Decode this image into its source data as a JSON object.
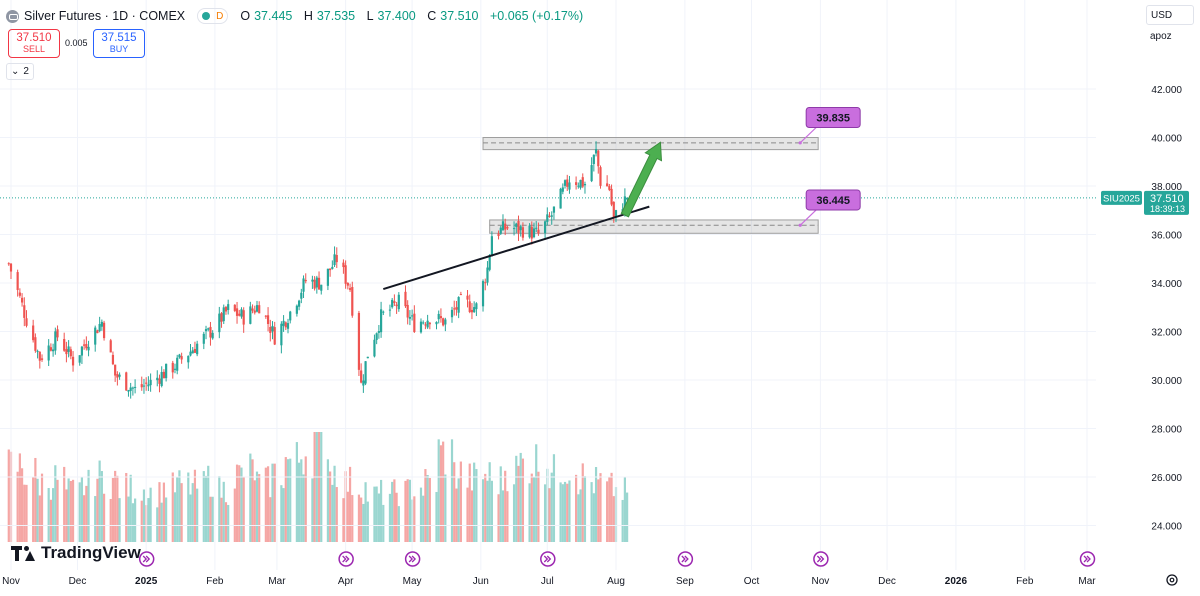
{
  "header": {
    "title": "Silver Futures · 1D · COMEX",
    "status_label": "D",
    "o_label": "O",
    "o_value": "37.445",
    "h_label": "H",
    "h_value": "37.535",
    "l_label": "L",
    "l_value": "37.400",
    "c_label": "C",
    "c_value": "37.510",
    "change": "+0.065 (+0.17%)"
  },
  "trade": {
    "sell_price": "37.510",
    "sell_label": "SELL",
    "spread": "0.005",
    "buy_price": "37.515",
    "buy_label": "BUY"
  },
  "indicators": {
    "count": "2"
  },
  "scale": {
    "currency": "USD",
    "mode": "apoz"
  },
  "logo": {
    "text": "TradingView"
  },
  "colors": {
    "up": "#26a69a",
    "down": "#ef5350",
    "vol_up": "#9ad6d0",
    "vol_down": "#f5a6a4",
    "annotation": "#c96ede",
    "arrow": "#4caf50"
  },
  "chart_data": {
    "type": "candlestick",
    "symbol": "SIU2025",
    "last_price": "37.510",
    "countdown": "18:39:13",
    "y_ticks": [
      "42.000",
      "40.000",
      "38.000",
      "36.000",
      "34.000",
      "32.000",
      "30.000",
      "28.000",
      "26.000",
      "24.000"
    ],
    "ylim": [
      22.8,
      43.8
    ],
    "x_ticks": [
      "Nov",
      "Dec",
      "2025",
      "Feb",
      "Mar",
      "Apr",
      "May",
      "Jun",
      "Jul",
      "Aug",
      "Sep",
      "Oct",
      "Nov",
      "Dec",
      "2026",
      "Feb",
      "Mar"
    ],
    "x_tick_dates": [
      "2024-11-01",
      "2024-12-01",
      "2025-01-01",
      "2025-02-01",
      "2025-03-01",
      "2025-04-01",
      "2025-05-01",
      "2025-06-01",
      "2025-07-01",
      "2025-08-01",
      "2025-09-01",
      "2025-10-01",
      "2025-11-01",
      "2025-12-01",
      "2026-01-01",
      "2026-02-01",
      "2026-03-01"
    ],
    "bold_ticks": [
      "2025",
      "2026"
    ],
    "price_path": [
      [
        "2024-10-31",
        34.8
      ],
      [
        "2024-11-08",
        32.5
      ],
      [
        "2024-11-14",
        30.9
      ],
      [
        "2024-11-22",
        31.8
      ],
      [
        "2024-11-29",
        30.8
      ],
      [
        "2024-12-06",
        31.7
      ],
      [
        "2024-12-12",
        32.4
      ],
      [
        "2024-12-18",
        30.2
      ],
      [
        "2024-12-27",
        29.6
      ],
      [
        "2025-01-03",
        29.9
      ],
      [
        "2025-01-14",
        30.6
      ],
      [
        "2025-01-21",
        31.2
      ],
      [
        "2025-01-31",
        32.1
      ],
      [
        "2025-02-07",
        32.9
      ],
      [
        "2025-02-14",
        32.6
      ],
      [
        "2025-02-21",
        33.1
      ],
      [
        "2025-02-28",
        31.8
      ],
      [
        "2025-03-07",
        32.8
      ],
      [
        "2025-03-14",
        34.1
      ],
      [
        "2025-03-21",
        34.0
      ],
      [
        "2025-03-28",
        35.0
      ],
      [
        "2025-04-03",
        33.8
      ],
      [
        "2025-04-08",
        29.8
      ],
      [
        "2025-04-11",
        31.1
      ],
      [
        "2025-04-17",
        32.6
      ],
      [
        "2025-04-25",
        33.2
      ],
      [
        "2025-05-02",
        32.3
      ],
      [
        "2025-05-09",
        32.6
      ],
      [
        "2025-05-16",
        32.4
      ],
      [
        "2025-05-23",
        33.2
      ],
      [
        "2025-05-30",
        33.0
      ],
      [
        "2025-06-04",
        34.6
      ],
      [
        "2025-06-06",
        36.0
      ],
      [
        "2025-06-13",
        36.3
      ],
      [
        "2025-06-20",
        36.2
      ],
      [
        "2025-06-27",
        36.0
      ],
      [
        "2025-07-03",
        36.8
      ],
      [
        "2025-07-11",
        38.3
      ],
      [
        "2025-07-15",
        38.2
      ],
      [
        "2025-07-18",
        38.1
      ],
      [
        "2025-07-23",
        39.4
      ],
      [
        "2025-07-25",
        38.2
      ],
      [
        "2025-07-29",
        37.9
      ],
      [
        "2025-07-31",
        36.6
      ],
      [
        "2025-08-04",
        37.3
      ],
      [
        "2025-08-06",
        37.51
      ]
    ],
    "volume_level": [
      0.42,
      0.38,
      0.33,
      0.35,
      0.28,
      0.31,
      0.36,
      0.34,
      0.3,
      0.29,
      0.27,
      0.3,
      0.32,
      0.31,
      0.35,
      0.29,
      0.37,
      0.4,
      0.33,
      0.38,
      0.45,
      0.5,
      0.62,
      0.4,
      0.33,
      0.3,
      0.26,
      0.27,
      0.28,
      0.3,
      0.33,
      0.49,
      0.38,
      0.35,
      0.37,
      0.34,
      0.4,
      0.44,
      0.45,
      0.38,
      0.42,
      0.36,
      0.33,
      0.3,
      0.28
    ],
    "zones": [
      {
        "from": "2025-06-02",
        "to": "2025-10-31",
        "low": 39.5,
        "high": 40.0,
        "dash_price": 39.78,
        "label": "39.835"
      },
      {
        "from": "2025-06-05",
        "to": "2025-10-31",
        "low": 36.05,
        "high": 36.6,
        "dash_price": 36.38,
        "label": "36.445"
      }
    ],
    "trendline": [
      [
        "2025-04-18",
        33.75
      ],
      [
        "2025-08-16",
        37.15
      ]
    ],
    "projection_arrow": [
      [
        "2025-08-05",
        36.8
      ],
      [
        "2025-08-21",
        39.8
      ]
    ],
    "event_markers": [
      "2025-01-01",
      "2025-04-01",
      "2025-05-01",
      "2025-07-01",
      "2025-09-01",
      "2025-11-01",
      "2026-03-01"
    ]
  }
}
